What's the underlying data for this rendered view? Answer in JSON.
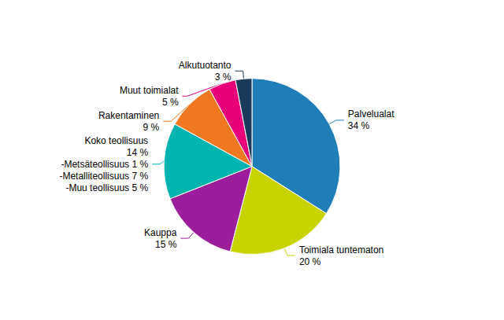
{
  "chart_data": {
    "type": "pie",
    "categories": [
      "Palvelualat\n34 %",
      "Toimiala tuntematon\n20 %",
      "Kauppa\n15 %",
      "Koko teollisuus\n14 %\n-Metsäteollisuus 1 %\n-Metalliteollisuus 7 %\n -Muu teollisuus 5 %",
      "Rakentaminen\n9 %",
      "Muut toimialat\n5 %",
      "Alkutuotanto\n3 %"
    ],
    "values": [
      34,
      20,
      15,
      14,
      9,
      5,
      3
    ],
    "colors": [
      "#1f7eb8",
      "#c8d400",
      "#9b1d9b",
      "#00b5b0",
      "#f07820",
      "#e8007a",
      "#1a3a5c"
    ]
  }
}
